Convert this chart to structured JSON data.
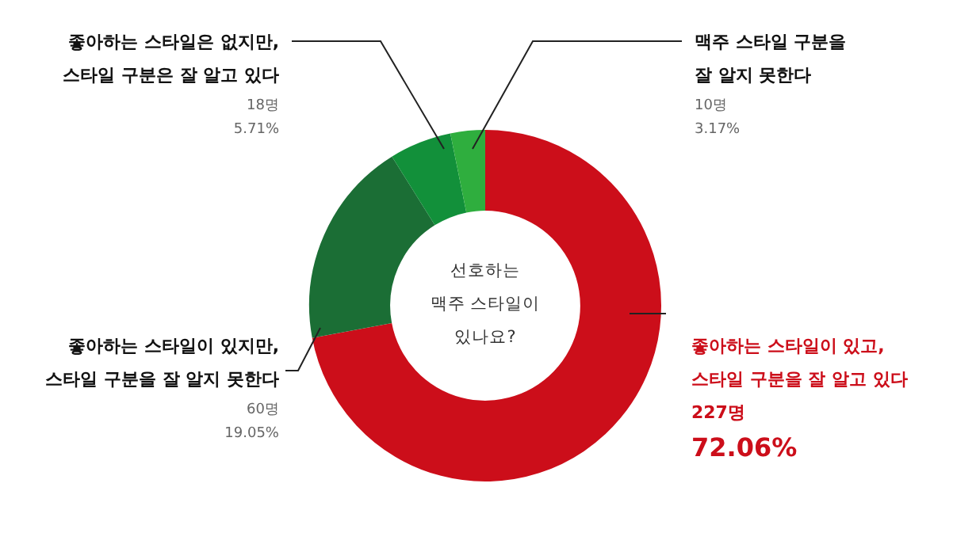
{
  "chart_data": {
    "type": "donut",
    "title": "선호하는\n맥주 스타일이\n있나요?",
    "categories": [
      "좋아하는 스타일이 있고,\n스타일 구분을 잘 알고 있다",
      "좋아하는 스타일이 있지만,\n스타일 구분을 잘 알지 못한다",
      "좋아하는 스타일은 없지만,\n스타일 구분은 잘 알고 있다",
      "맥주 스타일 구분을\n잘 알지 못한다"
    ],
    "values": [
      227,
      60,
      18,
      10
    ],
    "colors": [
      "#cc0e1a",
      "#1b6e35",
      "#12903a",
      "#2fae3e"
    ],
    "value_labels": [
      "227명\n72.06%",
      "60명\n19.05%",
      "18명\n5.71%",
      "10명\n3.17%"
    ],
    "legend": false
  }
}
